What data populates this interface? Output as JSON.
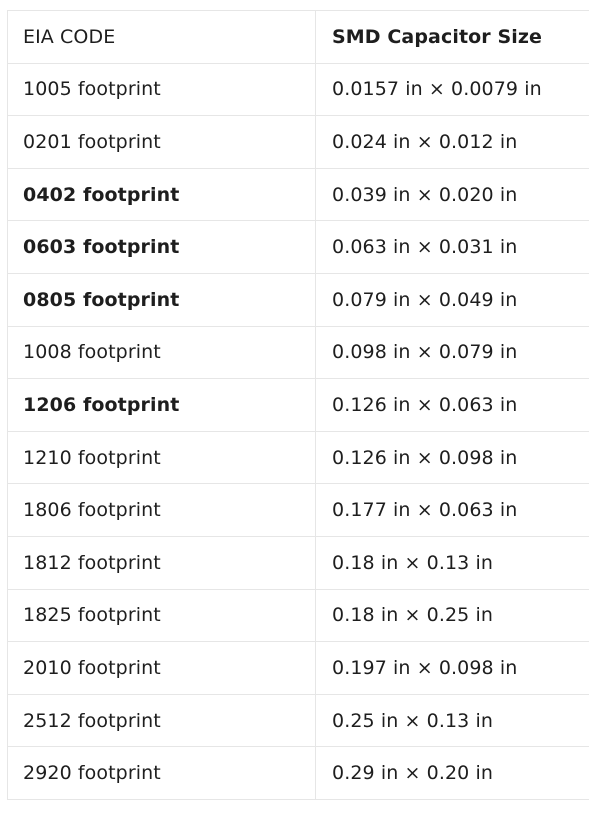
{
  "table": {
    "headers": [
      {
        "label": "EIA CODE",
        "bold": false
      },
      {
        "label": "SMD Capacitor Size",
        "bold": true
      }
    ],
    "rows": [
      {
        "code": "1005 footprint",
        "size": "0.0157 in × 0.0079 in",
        "bold": false
      },
      {
        "code": "0201 footprint",
        "size": "0.024 in × 0.012 in",
        "bold": false
      },
      {
        "code": "0402 footprint",
        "size": "0.039 in × 0.020 in",
        "bold": true
      },
      {
        "code": "0603 footprint",
        "size": "0.063 in × 0.031 in",
        "bold": true
      },
      {
        "code": "0805 footprint",
        "size": "0.079 in × 0.049 in",
        "bold": true
      },
      {
        "code": "1008 footprint",
        "size": "0.098 in × 0.079 in",
        "bold": false
      },
      {
        "code": "1206 footprint",
        "size": "0.126 in × 0.063 in",
        "bold": true
      },
      {
        "code": "1210 footprint",
        "size": "0.126 in × 0.098 in",
        "bold": false
      },
      {
        "code": "1806 footprint",
        "size": "0.177 in × 0.063 in",
        "bold": false
      },
      {
        "code": "1812 footprint",
        "size": "0.18 in × 0.13 in",
        "bold": false
      },
      {
        "code": "1825 footprint",
        "size": "0.18 in × 0.25 in",
        "bold": false
      },
      {
        "code": "2010 footprint",
        "size": "0.197 in × 0.098 in",
        "bold": false
      },
      {
        "code": "2512 footprint",
        "size": "0.25 in × 0.13 in",
        "bold": false
      },
      {
        "code": "2920 footprint",
        "size": "0.29 in × 0.20 in",
        "bold": false
      }
    ]
  }
}
